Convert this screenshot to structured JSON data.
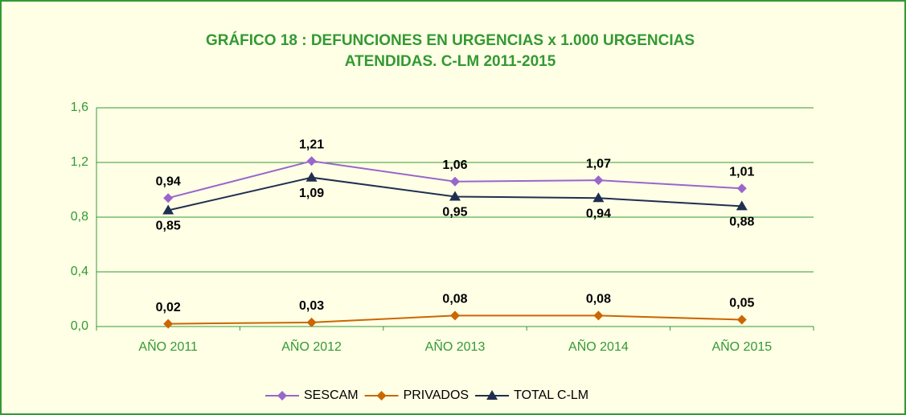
{
  "chart_data": {
    "type": "line",
    "title": [
      "GRÁFICO 18 : DEFUNCIONES EN URGENCIAS x 1.000 URGENCIAS",
      "ATENDIDAS. C-LM 2011-2015"
    ],
    "categories": [
      "AÑO 2011",
      "AÑO 2012",
      "AÑO 2013",
      "AÑO 2014",
      "AÑO 2015"
    ],
    "series": [
      {
        "name": "SESCAM",
        "color": "#9966cc",
        "marker": "diamond",
        "label_side": "above",
        "values": [
          0.94,
          1.21,
          1.06,
          1.07,
          1.01
        ],
        "value_labels": [
          "0,94",
          "1,21",
          "1,06",
          "1,07",
          "1,01"
        ]
      },
      {
        "name": "PRIVADOS",
        "color": "#cc6600",
        "marker": "diamond",
        "label_side": "above",
        "values": [
          0.02,
          0.03,
          0.08,
          0.08,
          0.05
        ],
        "value_labels": [
          "0,02",
          "0,03",
          "0,08",
          "0,08",
          "0,05"
        ]
      },
      {
        "name": "TOTAL C-LM",
        "color": "#1f2f4f",
        "marker": "triangle",
        "label_side": "below",
        "values": [
          0.85,
          1.09,
          0.95,
          0.94,
          0.88
        ],
        "value_labels": [
          "0,85",
          "1,09",
          "0,95",
          "0,94",
          "0,88"
        ]
      }
    ],
    "ylim": [
      0,
      1.6
    ],
    "yticks": [
      {
        "value": 0,
        "label": "0,0"
      },
      {
        "value": 0.4,
        "label": "0,4"
      },
      {
        "value": 0.8,
        "label": "0,8"
      },
      {
        "value": 1.2,
        "label": "1,2"
      },
      {
        "value": 1.6,
        "label": "1,6"
      }
    ],
    "grid": true,
    "legend": "bottom"
  }
}
